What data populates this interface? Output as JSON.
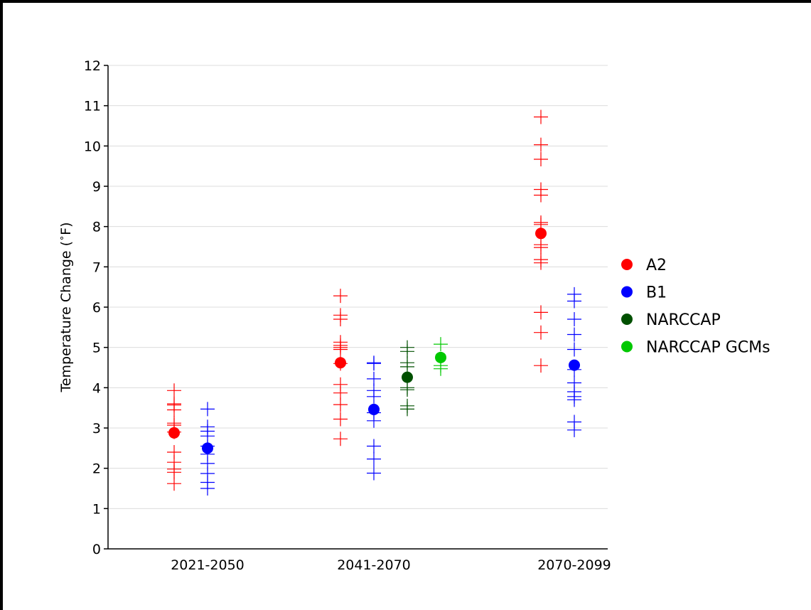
{
  "chart_data": {
    "type": "scatter",
    "title": "",
    "xlabel": "",
    "ylabel": "Temperature Change ($^\\circ$F)",
    "ylabel_text": "Temperature Change (",
    "ylabel_degree": "∘",
    "ylabel_unit": "F)",
    "ylim": [
      0,
      12
    ],
    "yticks": [
      0,
      1,
      2,
      3,
      4,
      5,
      6,
      7,
      8,
      9,
      10,
      11,
      12
    ],
    "categories": [
      "2021-2050",
      "2041-2070",
      "2070-2099"
    ],
    "grid": "horizontal",
    "legend_position": "right",
    "series": [
      {
        "name": "A2",
        "color": "#ff0000",
        "marker": "circle",
        "points": [
          {
            "category": "2021-2050",
            "mean": 2.88,
            "members": [
              3.93,
              3.6,
              3.57,
              3.45,
              3.12,
              3.07,
              2.9,
              2.4,
              2.15,
              1.98,
              1.9,
              1.62
            ]
          },
          {
            "category": "2041-2070",
            "mean": 4.62,
            "members": [
              6.28,
              5.8,
              5.7,
              5.13,
              5.05,
              5.0,
              4.95,
              4.6,
              4.08,
              3.87,
              3.58,
              3.22,
              2.73
            ]
          },
          {
            "category": "2070-2099",
            "mean": 7.83,
            "members": [
              10.72,
              10.03,
              9.67,
              8.92,
              8.78,
              8.1,
              8.05,
              7.55,
              7.48,
              7.18,
              7.1,
              5.87,
              5.37,
              4.55
            ]
          }
        ]
      },
      {
        "name": "B1",
        "color": "#0000ff",
        "marker": "circle",
        "points": [
          {
            "category": "2021-2050",
            "mean": 2.5,
            "members": [
              3.47,
              3.03,
              2.92,
              2.8,
              2.55,
              2.35,
              2.12,
              1.87,
              1.65,
              1.5
            ]
          },
          {
            "category": "2041-2070",
            "mean": 3.46,
            "members": [
              4.62,
              4.6,
              4.22,
              3.93,
              3.78,
              3.38,
              3.18,
              2.55,
              2.23,
              1.88
            ]
          },
          {
            "category": "2070-2099",
            "mean": 4.56,
            "members": [
              6.32,
              6.15,
              5.7,
              5.32,
              4.95,
              4.45,
              4.12,
              3.9,
              3.78,
              3.7,
              3.15,
              2.95
            ]
          }
        ]
      },
      {
        "name": "NARCCAP",
        "color": "#005000",
        "marker": "circle",
        "points": [
          {
            "category": "2041-2070",
            "mean": 4.26,
            "members": [
              5.0,
              4.9,
              4.62,
              4.52,
              4.0,
              3.95,
              3.55,
              3.47
            ]
          }
        ]
      },
      {
        "name": "NARCCAP GCMs",
        "color": "#00c800",
        "marker": "circle",
        "points": [
          {
            "category": "2041-2070",
            "mean": 4.75,
            "members": [
              5.08,
              4.55,
              4.47
            ]
          }
        ]
      }
    ]
  }
}
